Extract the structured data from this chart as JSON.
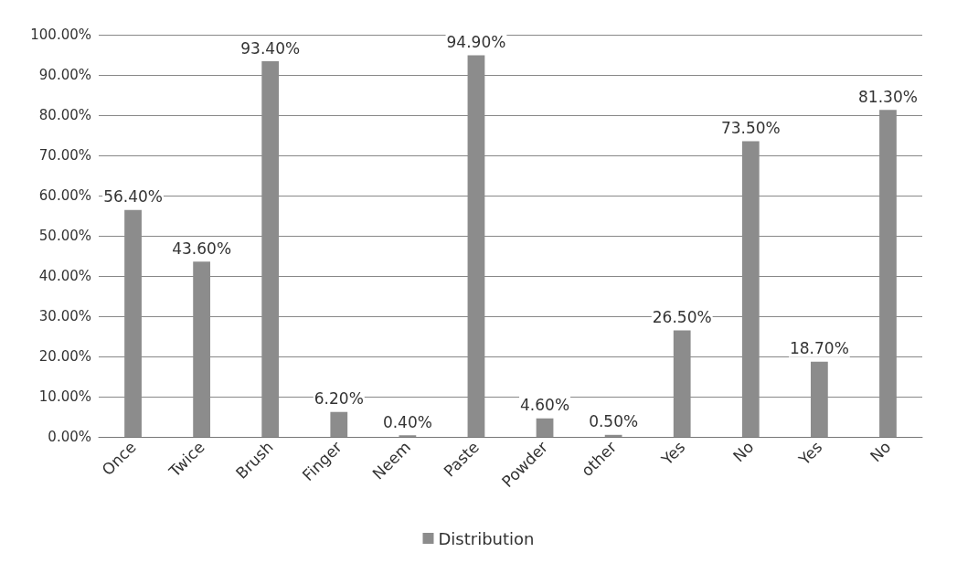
{
  "chart_data": {
    "type": "bar",
    "categories": [
      "Once",
      "Twice",
      "Brush",
      "Finger",
      "Neem",
      "Paste",
      "Powder",
      "other",
      "Yes",
      "No",
      "Yes",
      "No"
    ],
    "series": [
      {
        "name": "Distribution",
        "color": "#8c8c8c",
        "values": [
          56.4,
          43.6,
          93.4,
          6.2,
          0.4,
          94.9,
          4.6,
          0.5,
          26.5,
          73.5,
          18.7,
          81.3
        ],
        "value_labels": [
          "56.40%",
          "43.60%",
          "93.40%",
          "6.20%",
          "0.40%",
          "94.90%",
          "4.60%",
          "0.50%",
          "26.50%",
          "73.50%",
          "18.70%",
          "81.30%"
        ]
      }
    ],
    "ylim": [
      0,
      100
    ],
    "yticks": [
      {
        "value": 0,
        "label": "0.00%"
      },
      {
        "value": 10,
        "label": "10.00%"
      },
      {
        "value": 20,
        "label": "20.00%"
      },
      {
        "value": 30,
        "label": "30.00%"
      },
      {
        "value": 40,
        "label": "40.00%"
      },
      {
        "value": 50,
        "label": "50.00%"
      },
      {
        "value": 60,
        "label": "60.00%"
      },
      {
        "value": 70,
        "label": "70.00%"
      },
      {
        "value": 80,
        "label": "80.00%"
      },
      {
        "value": 90,
        "label": "90.00%"
      },
      {
        "value": 100,
        "label": "100.00%"
      }
    ],
    "grid": "y",
    "legend": "bottom"
  }
}
